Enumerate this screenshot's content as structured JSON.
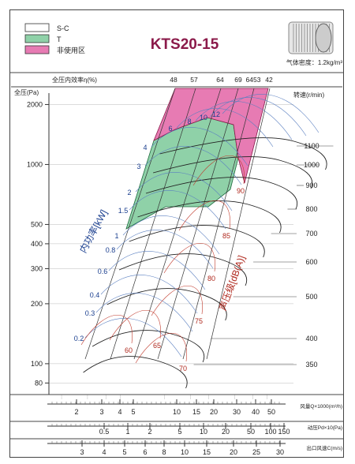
{
  "chart_data": {
    "type": "line",
    "title": "KTS20-15",
    "legend": {
      "items": [
        {
          "label": "S-C",
          "color": "#ffffff"
        },
        {
          "label": "T",
          "color": "#8fd1a8"
        },
        {
          "label": "非使用区",
          "color": "#e77bb3"
        }
      ],
      "placement": "top-left"
    },
    "density_note": "气体密度：1.2kg/m³",
    "efficiency_axis": {
      "label": "全压内效率η(%)",
      "ticks": [
        "48",
        "57",
        "64",
        "69",
        "6453",
        "42"
      ]
    },
    "y_axis": {
      "label": "全压(Pa)",
      "scale": "log",
      "ylim": [
        70,
        2200
      ],
      "ticks": [
        80,
        100,
        200,
        300,
        400,
        500,
        1000,
        2000
      ]
    },
    "speed_axis": {
      "label": "转速(r/min)",
      "ticks": [
        350,
        400,
        500,
        600,
        700,
        800,
        900,
        1000,
        1100
      ]
    },
    "power_axis": {
      "label": "内功率[kW]",
      "ticks": [
        "0.2",
        "0.3",
        "0.4",
        "0.6",
        "0.8",
        "1",
        "1.5",
        "2",
        "3",
        "4",
        "6",
        "8",
        "10",
        "12"
      ]
    },
    "noise_axis": {
      "label": "声压级[dB(A)]",
      "ticks": [
        "60",
        "65",
        "70",
        "75",
        "80",
        "85",
        "90"
      ]
    },
    "x_axes": [
      {
        "label": "风量Q×1000(m³/h)",
        "scale": "log",
        "ticks": [
          "2",
          "3",
          "4",
          "5",
          "10",
          "15",
          "20",
          "30",
          "40",
          "50"
        ]
      },
      {
        "label": "动压Pd×10(Pa)",
        "scale": "log",
        "ticks": [
          "0.5",
          "1",
          "2",
          "5",
          "10",
          "20",
          "50",
          "100",
          "150"
        ]
      },
      {
        "label": "出口风速C(m/s)",
        "scale": "log",
        "ticks": [
          "3",
          "4",
          "5",
          "6",
          "8",
          "10",
          "15",
          "20",
          "25",
          "30"
        ]
      }
    ],
    "grid": true
  }
}
